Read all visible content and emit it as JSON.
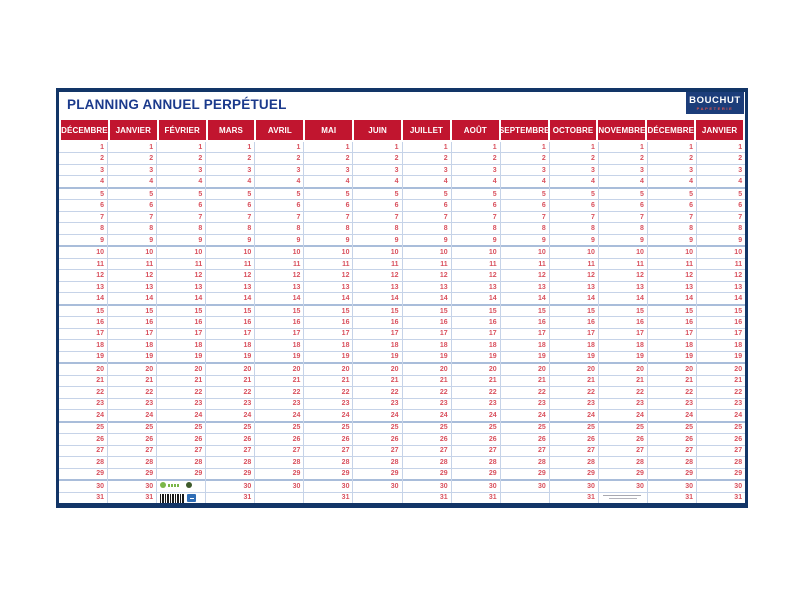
{
  "title": "PLANNING ANNUEL PERPÉTUEL",
  "brand": {
    "name": "BOUCHUT",
    "subtext": "PAPETERIE"
  },
  "months": [
    {
      "label": "DÉCEMBRE",
      "days": 31
    },
    {
      "label": "JANVIER",
      "days": 31
    },
    {
      "label": "FÉVRIER",
      "days": 29
    },
    {
      "label": "MARS",
      "days": 31
    },
    {
      "label": "AVRIL",
      "days": 30
    },
    {
      "label": "MAI",
      "days": 31
    },
    {
      "label": "JUIN",
      "days": 30
    },
    {
      "label": "JUILLET",
      "days": 31
    },
    {
      "label": "AOÛT",
      "days": 31
    },
    {
      "label": "SEPTEMBRE",
      "days": 30
    },
    {
      "label": "OCTOBRE",
      "days": 31
    },
    {
      "label": "NOVEMBRE",
      "days": 30
    },
    {
      "label": "DÉCEMBRE",
      "days": 31
    },
    {
      "label": "JANVIER",
      "days": 31
    }
  ],
  "grid": {
    "rows": 31,
    "group_size": 5
  },
  "marks": {
    "eco_label_column_index": 2,
    "eco_label_row": 30,
    "barcode_column_index": 2,
    "barcode_row": 31,
    "fineprint_column_index": 11,
    "fineprint_row": 31,
    "icons": [
      "eco-label-icon",
      "eco-badge-icon",
      "barcode-icon",
      "blue-square-logo-icon",
      "fineprint-lines"
    ]
  },
  "colors": {
    "header_red": "#c1152f",
    "number_red": "#d9515e",
    "navy_border": "#123567",
    "title_blue": "#1b3a8c",
    "logo_navy": "#1c3d7a",
    "grid_line": "#c6d3e8",
    "grid_line_thick": "#a9bdda"
  }
}
